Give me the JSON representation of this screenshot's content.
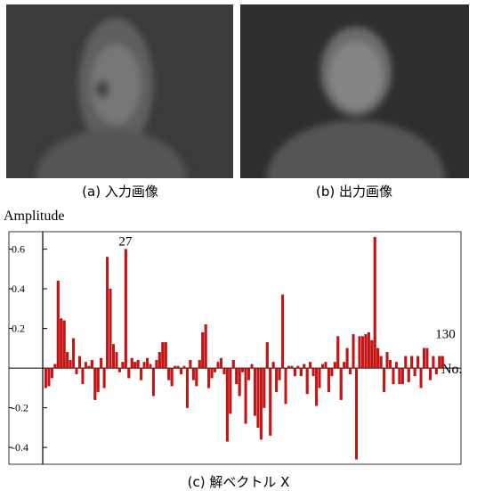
{
  "figures": {
    "captions": [
      "(a) 入力画像",
      "(b) 出力画像",
      "(c) 解ベクトル X"
    ]
  },
  "chart_data": {
    "type": "bar",
    "y_label": "Amplitude",
    "x_label": "No.",
    "color": "#d01010",
    "annotations": [
      {
        "text": "27",
        "x": 27
      },
      {
        "text": "130",
        "x": 130
      }
    ],
    "xlim": [
      -11,
      136
    ],
    "ylim": [
      -0.485,
      0.688
    ],
    "yticks": [
      -0.4,
      -0.2,
      0.2,
      0.4,
      0.6
    ],
    "grid": false,
    "x": [
      1,
      2,
      3,
      4,
      5,
      6,
      7,
      8,
      9,
      10,
      11,
      12,
      13,
      14,
      15,
      16,
      17,
      18,
      19,
      20,
      21,
      22,
      23,
      24,
      25,
      26,
      27,
      28,
      29,
      30,
      31,
      32,
      33,
      34,
      35,
      36,
      37,
      38,
      39,
      40,
      41,
      42,
      43,
      44,
      45,
      46,
      47,
      48,
      49,
      50,
      51,
      52,
      53,
      54,
      55,
      56,
      57,
      58,
      59,
      60,
      61,
      62,
      63,
      64,
      65,
      66,
      67,
      68,
      69,
      70,
      71,
      72,
      73,
      74,
      75,
      76,
      77,
      78,
      79,
      80,
      81,
      82,
      83,
      84,
      85,
      86,
      87,
      88,
      89,
      90,
      91,
      92,
      93,
      94,
      95,
      96,
      97,
      98,
      99,
      100,
      101,
      102,
      103,
      104,
      105,
      106,
      107,
      108,
      109,
      110,
      111,
      112,
      113,
      114,
      115,
      116,
      117,
      118,
      119,
      120,
      121,
      122,
      123,
      124,
      125,
      126,
      127,
      128,
      129,
      130
    ],
    "values": [
      -0.1,
      -0.09,
      -0.05,
      0.02,
      0.44,
      0.25,
      0.24,
      0.08,
      0.04,
      0.15,
      -0.03,
      0.06,
      -0.08,
      0.03,
      0.01,
      0.04,
      -0.16,
      -0.12,
      0.05,
      -0.1,
      0.56,
      0.4,
      0.12,
      0.08,
      -0.02,
      0.03,
      0.6,
      -0.05,
      0.05,
      0.03,
      0.04,
      -0.06,
      0.03,
      0.05,
      0.02,
      -0.14,
      0.04,
      0.08,
      0.13,
      0.13,
      -0.06,
      -0.09,
      0.01,
      0.01,
      -0.03,
      0.01,
      -0.2,
      0.04,
      -0.06,
      -0.09,
      0.04,
      0.18,
      0.22,
      -0.1,
      -0.05,
      -0.02,
      0.03,
      0.05,
      -0.03,
      -0.37,
      -0.23,
      0.04,
      -0.08,
      -0.14,
      -0.02,
      -0.28,
      -0.06,
      0.02,
      -0.24,
      -0.3,
      -0.36,
      -0.2,
      0.13,
      -0.34,
      0.03,
      -0.12,
      -0.06,
      0.37,
      -0.18,
      0.01,
      0.01,
      -0.04,
      0.01,
      -0.04,
      0.02,
      -0.13,
      0.03,
      -0.04,
      -0.19,
      -0.1,
      0.02,
      0.03,
      -0.12,
      -0.04,
      0.03,
      0.16,
      -0.16,
      0.03,
      0.1,
      -0.03,
      0.17,
      -0.46,
      0.16,
      0.16,
      0.17,
      0.18,
      0.14,
      0.66,
      0.1,
      0.06,
      -0.12,
      0.08,
      0.04,
      -0.08,
      0.03,
      -0.08,
      -0.08,
      0.06,
      -0.07,
      0.06,
      -0.04,
      0.06,
      -0.1,
      0.1,
      0.1,
      -0.06,
      0.06,
      -0.03,
      0.06,
      0.06
    ]
  }
}
